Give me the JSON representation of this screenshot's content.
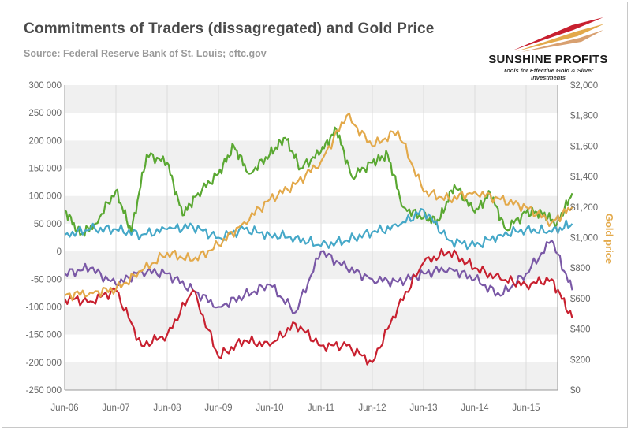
{
  "header": {
    "title": "Commitments of Traders (dissagregated) and Gold Price",
    "subtitle": "Source: Federal Reserve Bank of St. Louis; cftc.gov"
  },
  "logo": {
    "name": "SUNSHINE PROFITS",
    "tagline": "Tools for Effective Gold & Silver Investments"
  },
  "chart_data": {
    "type": "line",
    "title": "Commitments of Traders (dissagregated) and Gold Price",
    "subtitle": "Source: Federal Reserve Bank of St. Louis; cftc.gov",
    "x_tick_labels": [
      "Jun-06",
      "Jun-07",
      "Jun-08",
      "Jun-09",
      "Jun-10",
      "Jun-11",
      "Jun-12",
      "Jun-13",
      "Jun-14",
      "Jun-15"
    ],
    "y_left": {
      "min": -250000,
      "max": 300000,
      "step": 50000,
      "tick_labels": [
        "-250 000",
        "-200 000",
        "-150 000",
        "-100 000",
        "-50 000",
        "0",
        "50 000",
        "100 000",
        "150 000",
        "200 000",
        "250 000",
        "300 000"
      ]
    },
    "y_right": {
      "label": "Gold price",
      "min": 0,
      "max": 2000,
      "step": 200,
      "tick_labels": [
        "$0",
        "$200",
        "$400",
        "$600",
        "$800",
        "$1,000",
        "$1,200",
        "$1,400",
        "$1,600",
        "$1,800",
        "$2,000"
      ]
    },
    "background_band_colors": [
      "#f0f0f0",
      "#ffffff"
    ],
    "series": [
      {
        "axis": "left",
        "color": "#5aa832",
        "x": [
          0,
          0.3,
          0.6,
          1,
          1.3,
          1.6,
          2,
          2.3,
          2.6,
          3,
          3.3,
          3.6,
          4,
          4.3,
          4.6,
          5,
          5.3,
          5.6,
          6,
          6.3,
          6.6,
          7,
          7.3,
          7.6,
          8,
          8.3,
          8.6,
          9,
          9.3,
          9.6,
          9.9
        ],
        "values": [
          75000,
          30000,
          50000,
          110000,
          35000,
          175000,
          160000,
          65000,
          105000,
          140000,
          190000,
          140000,
          175000,
          205000,
          150000,
          180000,
          220000,
          135000,
          160000,
          175000,
          80000,
          60000,
          55000,
          120000,
          70000,
          105000,
          40000,
          70000,
          70000,
          50000,
          105000
        ]
      },
      {
        "axis": "left",
        "color": "#45a8c8",
        "x": [
          0,
          0.5,
          1,
          1.5,
          2,
          2.5,
          3,
          3.5,
          4,
          4.5,
          5,
          5.5,
          6,
          6.5,
          7,
          7.5,
          8,
          8.5,
          9,
          9.5,
          9.9
        ],
        "values": [
          30000,
          40000,
          40000,
          30000,
          40000,
          45000,
          25000,
          40000,
          30000,
          25000,
          10000,
          20000,
          35000,
          45000,
          75000,
          20000,
          10000,
          30000,
          40000,
          35000,
          50000
        ]
      },
      {
        "axis": "left",
        "color": "#7a58a6",
        "x": [
          0,
          0.5,
          1,
          1.5,
          2,
          2.5,
          3,
          3.5,
          4,
          4.5,
          5,
          5.5,
          6,
          6.5,
          7,
          7.5,
          8,
          8.5,
          9,
          9.5,
          9.9
        ],
        "values": [
          -40000,
          -30000,
          -60000,
          -35000,
          -40000,
          -70000,
          -100000,
          -80000,
          -60000,
          -110000,
          0,
          -30000,
          -50000,
          -55000,
          -40000,
          -30000,
          -50000,
          -80000,
          -40000,
          20000,
          -70000
        ]
      },
      {
        "axis": "left",
        "color": "#c8202f",
        "x": [
          0,
          0.5,
          1,
          1.5,
          2,
          2.5,
          3,
          3.5,
          4,
          4.5,
          5,
          5.5,
          6,
          6.5,
          7,
          7.5,
          8,
          8.5,
          9,
          9.5,
          9.9
        ],
        "values": [
          -85000,
          -90000,
          -70000,
          -170000,
          -150000,
          -70000,
          -190000,
          -160000,
          -170000,
          -130000,
          -170000,
          -170000,
          -200000,
          -100000,
          -20000,
          0,
          -30000,
          -50000,
          -60000,
          -50000,
          -120000
        ]
      },
      {
        "axis": "right",
        "color": "#e3a94a",
        "x": [
          0,
          0.5,
          1,
          1.5,
          2,
          2.5,
          3,
          3.5,
          4,
          4.5,
          5,
          5.5,
          6,
          6.5,
          7,
          7.5,
          8,
          8.5,
          9,
          9.5,
          9.9
        ],
        "values": [
          620,
          640,
          660,
          780,
          900,
          850,
          950,
          1100,
          1250,
          1350,
          1500,
          1800,
          1600,
          1700,
          1300,
          1250,
          1300,
          1250,
          1200,
          1100,
          1200
        ]
      }
    ]
  }
}
